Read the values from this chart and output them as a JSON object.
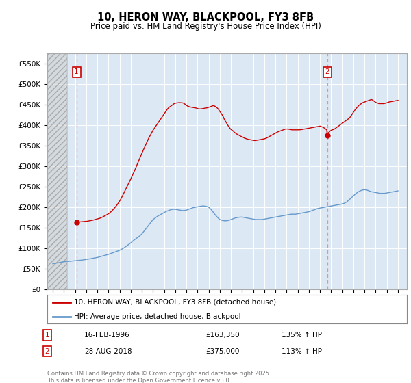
{
  "title": "10, HERON WAY, BLACKPOOL, FY3 8FB",
  "subtitle": "Price paid vs. HM Land Registry's House Price Index (HPI)",
  "ylim": [
    0,
    575000
  ],
  "yticks": [
    0,
    50000,
    100000,
    150000,
    200000,
    250000,
    300000,
    350000,
    400000,
    450000,
    500000,
    550000
  ],
  "ytick_labels": [
    "£0",
    "£50K",
    "£100K",
    "£150K",
    "£200K",
    "£250K",
    "£300K",
    "£350K",
    "£400K",
    "£450K",
    "£500K",
    "£550K"
  ],
  "xlim_start": 1993.5,
  "xlim_end": 2025.8,
  "plot_bg": "#dce9f5",
  "hatch_end_year": 1995.3,
  "marker1_x": 1996.12,
  "marker1_y": 163350,
  "marker1_label": "16-FEB-1996",
  "marker1_price": "£163,350",
  "marker1_hpi": "135% ↑ HPI",
  "marker2_x": 2018.65,
  "marker2_y": 375000,
  "marker2_label": "28-AUG-2018",
  "marker2_price": "£375,000",
  "marker2_hpi": "113% ↑ HPI",
  "red_line_color": "#cc0000",
  "blue_line_color": "#6699cc",
  "marker_box_color": "#cc0000",
  "legend_line1": "10, HERON WAY, BLACKPOOL, FY3 8FB (detached house)",
  "legend_line2": "HPI: Average price, detached house, Blackpool",
  "copyright_text": "Contains HM Land Registry data © Crown copyright and database right 2025.\nThis data is licensed under the Open Government Licence v3.0.",
  "background_color": "#ffffff",
  "grid_color": "#ffffff",
  "hpi_x": [
    1994.0,
    1994.1,
    1994.2,
    1994.3,
    1994.4,
    1994.5,
    1994.6,
    1994.7,
    1994.8,
    1994.9,
    1995.0,
    1995.1,
    1995.2,
    1995.3,
    1995.4,
    1995.5,
    1995.6,
    1995.7,
    1995.8,
    1995.9,
    1996.0,
    1996.2,
    1996.4,
    1996.6,
    1996.8,
    1997.0,
    1997.2,
    1997.4,
    1997.6,
    1997.8,
    1998.0,
    1998.2,
    1998.4,
    1998.6,
    1998.8,
    1999.0,
    1999.2,
    1999.4,
    1999.6,
    1999.8,
    2000.0,
    2000.2,
    2000.4,
    2000.6,
    2000.8,
    2001.0,
    2001.2,
    2001.4,
    2001.6,
    2001.8,
    2002.0,
    2002.2,
    2002.4,
    2002.6,
    2002.8,
    2003.0,
    2003.2,
    2003.4,
    2003.6,
    2003.8,
    2004.0,
    2004.2,
    2004.4,
    2004.6,
    2004.8,
    2005.0,
    2005.2,
    2005.4,
    2005.6,
    2005.8,
    2006.0,
    2006.2,
    2006.4,
    2006.6,
    2006.8,
    2007.0,
    2007.2,
    2007.4,
    2007.6,
    2007.8,
    2008.0,
    2008.2,
    2008.4,
    2008.6,
    2008.8,
    2009.0,
    2009.2,
    2009.4,
    2009.6,
    2009.8,
    2010.0,
    2010.2,
    2010.4,
    2010.6,
    2010.8,
    2011.0,
    2011.2,
    2011.4,
    2011.6,
    2011.8,
    2012.0,
    2012.2,
    2012.4,
    2012.6,
    2012.8,
    2013.0,
    2013.2,
    2013.4,
    2013.6,
    2013.8,
    2014.0,
    2014.2,
    2014.4,
    2014.6,
    2014.8,
    2015.0,
    2015.2,
    2015.4,
    2015.6,
    2015.8,
    2016.0,
    2016.2,
    2016.4,
    2016.6,
    2016.8,
    2017.0,
    2017.2,
    2017.4,
    2017.6,
    2017.8,
    2018.0,
    2018.2,
    2018.4,
    2018.6,
    2018.8,
    2019.0,
    2019.2,
    2019.4,
    2019.6,
    2019.8,
    2020.0,
    2020.2,
    2020.4,
    2020.6,
    2020.8,
    2021.0,
    2021.2,
    2021.4,
    2021.6,
    2021.8,
    2022.0,
    2022.2,
    2022.4,
    2022.6,
    2022.8,
    2023.0,
    2023.2,
    2023.4,
    2023.6,
    2023.8,
    2024.0,
    2024.2,
    2024.4,
    2024.6,
    2024.8,
    2025.0
  ],
  "hpi_y": [
    62000,
    62500,
    63000,
    63500,
    64000,
    64500,
    65000,
    65500,
    66000,
    66500,
    67000,
    67200,
    67400,
    67600,
    67800,
    68000,
    68300,
    68600,
    68900,
    69200,
    69500,
    70000,
    70500,
    71000,
    71800,
    72500,
    73500,
    74500,
    75500,
    76500,
    77500,
    79000,
    80500,
    82000,
    83500,
    85000,
    87000,
    89000,
    91000,
    93000,
    95000,
    98000,
    101000,
    105000,
    109000,
    113000,
    118000,
    122000,
    126000,
    130000,
    135000,
    142000,
    149000,
    156000,
    163000,
    170000,
    174000,
    178000,
    181000,
    184000,
    187000,
    190000,
    192000,
    194000,
    195000,
    195000,
    194000,
    193000,
    192000,
    192000,
    193000,
    195000,
    197000,
    199000,
    200000,
    201000,
    202000,
    203000,
    203000,
    202000,
    200000,
    195000,
    188000,
    181000,
    175000,
    170000,
    168000,
    167000,
    167000,
    168000,
    170000,
    172000,
    174000,
    175000,
    176000,
    176000,
    175000,
    174000,
    173000,
    172000,
    171000,
    170000,
    170000,
    170000,
    170000,
    171000,
    172000,
    173000,
    174000,
    175000,
    176000,
    177000,
    178000,
    179000,
    180000,
    181000,
    182000,
    183000,
    183000,
    183000,
    184000,
    185000,
    186000,
    187000,
    188000,
    189000,
    191000,
    193000,
    195000,
    197000,
    198000,
    199000,
    200000,
    201000,
    202000,
    203000,
    204000,
    205000,
    206000,
    207000,
    208000,
    210000,
    213000,
    218000,
    223000,
    228000,
    233000,
    237000,
    240000,
    242000,
    243000,
    242000,
    240000,
    238000,
    237000,
    236000,
    235000,
    234000,
    234000,
    234000,
    235000,
    236000,
    237000,
    238000,
    239000,
    240000
  ],
  "prop_x": [
    1996.12,
    1996.3,
    1996.5,
    1996.7,
    1996.9,
    1997.0,
    1997.1,
    1997.2,
    1997.3,
    1997.4,
    1997.5,
    1997.6,
    1997.7,
    1997.8,
    1997.9,
    1998.0,
    1998.1,
    1998.2,
    1998.3,
    1998.4,
    1998.5,
    1998.6,
    1998.7,
    1998.8,
    1998.9,
    1999.0,
    1999.1,
    1999.2,
    1999.3,
    1999.4,
    1999.5,
    1999.6,
    1999.7,
    1999.8,
    1999.9,
    2000.0,
    2000.1,
    2000.2,
    2000.3,
    2000.4,
    2000.5,
    2000.6,
    2000.7,
    2000.8,
    2000.9,
    2001.0,
    2001.1,
    2001.2,
    2001.3,
    2001.4,
    2001.5,
    2001.6,
    2001.7,
    2001.8,
    2001.9,
    2002.0,
    2002.1,
    2002.2,
    2002.3,
    2002.4,
    2002.5,
    2002.6,
    2002.7,
    2002.8,
    2002.9,
    2003.0,
    2003.1,
    2003.2,
    2003.3,
    2003.4,
    2003.5,
    2003.6,
    2003.7,
    2003.8,
    2003.9,
    2004.0,
    2004.1,
    2004.2,
    2004.3,
    2004.4,
    2004.5,
    2004.6,
    2004.7,
    2004.8,
    2004.9,
    2005.0,
    2005.1,
    2005.2,
    2005.3,
    2005.4,
    2005.5,
    2005.6,
    2005.7,
    2005.8,
    2005.9,
    2006.0,
    2006.1,
    2006.2,
    2006.3,
    2006.4,
    2006.5,
    2006.6,
    2006.7,
    2006.8,
    2006.9,
    2007.0,
    2007.1,
    2007.2,
    2007.3,
    2007.4,
    2007.5,
    2007.6,
    2007.7,
    2007.8,
    2007.9,
    2008.0,
    2008.1,
    2008.2,
    2008.3,
    2008.4,
    2008.5,
    2008.6,
    2008.7,
    2008.8,
    2008.9,
    2009.0,
    2009.1,
    2009.2,
    2009.3,
    2009.4,
    2009.5,
    2009.6,
    2009.7,
    2009.8,
    2009.9,
    2010.0,
    2010.1,
    2010.2,
    2010.3,
    2010.4,
    2010.5,
    2010.6,
    2010.7,
    2010.8,
    2010.9,
    2011.0,
    2011.1,
    2011.2,
    2011.3,
    2011.4,
    2011.5,
    2011.6,
    2011.7,
    2011.8,
    2011.9,
    2012.0,
    2012.1,
    2012.2,
    2012.3,
    2012.4,
    2012.5,
    2012.6,
    2012.7,
    2012.8,
    2012.9,
    2013.0,
    2013.1,
    2013.2,
    2013.3,
    2013.4,
    2013.5,
    2013.6,
    2013.7,
    2013.8,
    2013.9,
    2014.0,
    2014.1,
    2014.2,
    2014.3,
    2014.4,
    2014.5,
    2014.6,
    2014.7,
    2014.8,
    2014.9,
    2015.0,
    2015.1,
    2015.2,
    2015.3,
    2015.4,
    2015.5,
    2015.6,
    2015.7,
    2015.8,
    2015.9,
    2016.0,
    2016.1,
    2016.2,
    2016.3,
    2016.4,
    2016.5,
    2016.6,
    2016.7,
    2016.8,
    2016.9,
    2017.0,
    2017.1,
    2017.2,
    2017.3,
    2017.4,
    2017.5,
    2017.6,
    2017.7,
    2017.8,
    2017.9,
    2018.0,
    2018.1,
    2018.2,
    2018.3,
    2018.4,
    2018.5,
    2018.6,
    2018.65,
    2018.7,
    2018.8,
    2018.9,
    2019.0,
    2019.1,
    2019.2,
    2019.3,
    2019.4,
    2019.5,
    2019.6,
    2019.7,
    2019.8,
    2019.9,
    2020.0,
    2020.1,
    2020.2,
    2020.3,
    2020.4,
    2020.5,
    2020.6,
    2020.7,
    2020.8,
    2020.9,
    2021.0,
    2021.1,
    2021.2,
    2021.3,
    2021.4,
    2021.5,
    2021.6,
    2021.7,
    2021.8,
    2021.9,
    2022.0,
    2022.1,
    2022.2,
    2022.3,
    2022.4,
    2022.5,
    2022.6,
    2022.7,
    2022.8,
    2022.9,
    2023.0,
    2023.1,
    2023.2,
    2023.3,
    2023.4,
    2023.5,
    2023.6,
    2023.7,
    2023.8,
    2023.9,
    2024.0,
    2024.1,
    2024.2,
    2024.3,
    2024.4,
    2024.5,
    2024.6,
    2024.7,
    2024.8,
    2024.9,
    2025.0
  ],
  "prop_y": [
    163350,
    163800,
    164300,
    164700,
    165200,
    165500,
    165900,
    166400,
    167000,
    167500,
    168000,
    168500,
    169200,
    170000,
    170800,
    171500,
    172300,
    173000,
    174000,
    175200,
    176500,
    178000,
    179500,
    181000,
    182500,
    184000,
    186000,
    188500,
    191000,
    194000,
    197000,
    200000,
    203500,
    207000,
    211000,
    215000,
    220000,
    225000,
    230500,
    236000,
    241500,
    247000,
    252500,
    258000,
    263500,
    269000,
    275000,
    281000,
    287000,
    293000,
    299500,
    306000,
    312500,
    319000,
    325500,
    332000,
    338000,
    344000,
    350000,
    356000,
    362000,
    368000,
    373000,
    378000,
    383000,
    388000,
    392000,
    396000,
    400000,
    404000,
    408000,
    412000,
    416000,
    420000,
    424000,
    428000,
    432000,
    436000,
    440000,
    443000,
    445000,
    447000,
    449000,
    451000,
    453000,
    454000,
    454500,
    455000,
    455200,
    455300,
    455200,
    455000,
    454500,
    453000,
    451000,
    449000,
    447000,
    446000,
    445000,
    444500,
    444000,
    443500,
    443000,
    442500,
    442000,
    441000,
    440000,
    440000,
    440000,
    440500,
    441000,
    441500,
    442000,
    442500,
    443000,
    444000,
    445000,
    446000,
    447000,
    448000,
    447500,
    446000,
    444000,
    441500,
    438000,
    434000,
    430000,
    426000,
    421000,
    415000,
    410000,
    406000,
    401000,
    397000,
    393000,
    390000,
    388000,
    386000,
    383000,
    381000,
    379000,
    377500,
    376000,
    374500,
    373000,
    372000,
    370500,
    369000,
    368000,
    367000,
    366000,
    365500,
    365000,
    364500,
    364000,
    363500,
    363000,
    363000,
    363500,
    364000,
    364500,
    365000,
    365500,
    366000,
    366500,
    367000,
    368000,
    369000,
    370500,
    372000,
    373500,
    375000,
    376500,
    378000,
    379500,
    381000,
    382500,
    384000,
    385000,
    386000,
    387000,
    388000,
    389000,
    390000,
    391000,
    391000,
    391000,
    390500,
    390000,
    389500,
    389000,
    389000,
    389000,
    389000,
    389000,
    389000,
    389000,
    389200,
    389500,
    390000,
    390500,
    391000,
    391500,
    392000,
    392500,
    393000,
    393500,
    394000,
    394500,
    395000,
    395500,
    396000,
    396500,
    397000,
    397500,
    398000,
    397000,
    396000,
    395000,
    393000,
    391000,
    389000,
    375000,
    381000,
    383000,
    386000,
    388000,
    389000,
    390000,
    391000,
    393000,
    395000,
    397000,
    399000,
    401000,
    403000,
    405000,
    407000,
    409000,
    411000,
    413000,
    415000,
    417000,
    420000,
    424000,
    428000,
    432000,
    436000,
    440000,
    443000,
    446000,
    449000,
    451000,
    453000,
    455000,
    456000,
    457000,
    458000,
    459000,
    460000,
    461000,
    462000,
    463000,
    462000,
    460000,
    458000,
    456000,
    455000,
    454000,
    453000,
    453000,
    453000,
    453000,
    453000,
    453500,
    454000,
    455000,
    456000,
    457000,
    457500,
    458000,
    458500,
    459000,
    459500,
    460000,
    460500,
    461000
  ]
}
